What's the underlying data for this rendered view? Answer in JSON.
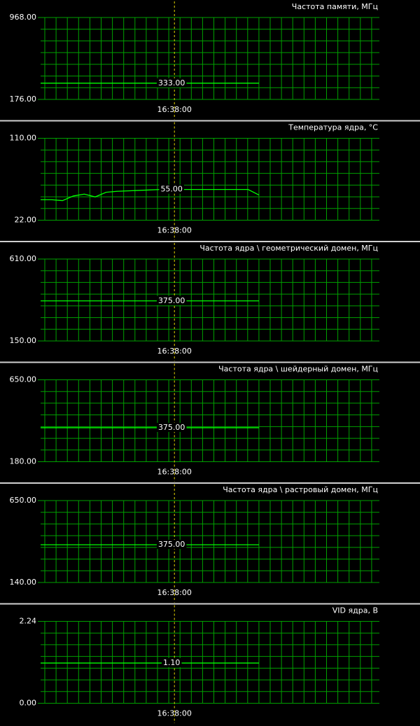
{
  "chart_data": [
    {
      "type": "line",
      "title": "Частота памяти, МГц",
      "color": "#00ff00",
      "categories": [
        null,
        null,
        null,
        null,
        null,
        null,
        null,
        null,
        null,
        null,
        null,
        null,
        "16:38:00",
        null,
        null,
        null,
        null,
        null,
        null,
        null,
        null
      ],
      "values": [
        333,
        333,
        333,
        333,
        333,
        333,
        333,
        333,
        333,
        333,
        333,
        333,
        333,
        333,
        333,
        333,
        333,
        333,
        333,
        333,
        333
      ],
      "value_labels": [
        null,
        null,
        null,
        null,
        null,
        null,
        null,
        null,
        null,
        null,
        null,
        null,
        "333.00",
        null,
        null,
        null,
        null,
        null,
        null,
        null,
        null
      ],
      "ylim": [
        176,
        968
      ],
      "yticks": [
        {
          "value": 176,
          "label": "176.00"
        },
        {
          "value": 968,
          "label": "968.00"
        }
      ]
    },
    {
      "type": "line",
      "title": "Температура ядра, °C",
      "color": "#00ff00",
      "categories": [
        null,
        null,
        null,
        null,
        null,
        null,
        null,
        null,
        null,
        null,
        null,
        null,
        "16:38:00",
        null,
        null,
        null,
        null,
        null,
        null,
        null,
        null
      ],
      "values": [
        44,
        44,
        43,
        48,
        50,
        47,
        52,
        53,
        53.5,
        54,
        54.5,
        55,
        55,
        55,
        55,
        55,
        55,
        55,
        55,
        55,
        49
      ],
      "value_labels": [
        null,
        null,
        null,
        null,
        null,
        null,
        null,
        null,
        null,
        null,
        null,
        null,
        "55.00",
        null,
        null,
        null,
        null,
        null,
        null,
        null,
        null
      ],
      "ylim": [
        22,
        110
      ],
      "yticks": [
        {
          "value": 22,
          "label": "22.00"
        },
        {
          "value": 110,
          "label": "110.00"
        }
      ]
    },
    {
      "type": "line",
      "title": "Частота ядра \\ геометрический домен, МГц",
      "color": "#00ff00",
      "categories": [
        null,
        null,
        null,
        null,
        null,
        null,
        null,
        null,
        null,
        null,
        null,
        null,
        "16:38:00",
        null,
        null,
        null,
        null,
        null,
        null,
        null,
        null
      ],
      "values": [
        375,
        375,
        375,
        375,
        375,
        375,
        375,
        375,
        375,
        375,
        375,
        375,
        375,
        375,
        375,
        375,
        375,
        375,
        375,
        375,
        375
      ],
      "value_labels": [
        null,
        null,
        null,
        null,
        null,
        null,
        null,
        null,
        null,
        null,
        null,
        null,
        "375.00",
        null,
        null,
        null,
        null,
        null,
        null,
        null,
        null
      ],
      "ylim": [
        150,
        610
      ],
      "yticks": [
        {
          "value": 150,
          "label": "150.00"
        },
        {
          "value": 610,
          "label": "610.00"
        }
      ]
    },
    {
      "type": "line",
      "title": "Частота ядра \\ шейдерный домен, МГц",
      "color": "#00ff00",
      "categories": [
        null,
        null,
        null,
        null,
        null,
        null,
        null,
        null,
        null,
        null,
        null,
        null,
        "16:38:00",
        null,
        null,
        null,
        null,
        null,
        null,
        null,
        null
      ],
      "values": [
        375,
        375,
        375,
        375,
        375,
        375,
        375,
        375,
        375,
        375,
        375,
        375,
        375,
        375,
        375,
        375,
        375,
        375,
        375,
        375,
        375
      ],
      "value_labels": [
        null,
        null,
        null,
        null,
        null,
        null,
        null,
        null,
        null,
        null,
        null,
        null,
        "375.00",
        null,
        null,
        null,
        null,
        null,
        null,
        null,
        null
      ],
      "ylim": [
        180,
        650
      ],
      "yticks": [
        {
          "value": 180,
          "label": "180.00"
        },
        {
          "value": 650,
          "label": "650.00"
        }
      ]
    },
    {
      "type": "line",
      "title": "Частота ядра \\ растровый домен, МГц",
      "color": "#00ff00",
      "categories": [
        null,
        null,
        null,
        null,
        null,
        null,
        null,
        null,
        null,
        null,
        null,
        null,
        "16:38:00",
        null,
        null,
        null,
        null,
        null,
        null,
        null,
        null
      ],
      "values": [
        375,
        375,
        375,
        375,
        375,
        375,
        375,
        375,
        375,
        375,
        375,
        375,
        375,
        375,
        375,
        375,
        375,
        375,
        375,
        375,
        375
      ],
      "value_labels": [
        null,
        null,
        null,
        null,
        null,
        null,
        null,
        null,
        null,
        null,
        null,
        null,
        "375.00",
        null,
        null,
        null,
        null,
        null,
        null,
        null,
        null
      ],
      "ylim": [
        140,
        650
      ],
      "yticks": [
        {
          "value": 140,
          "label": "140.00"
        },
        {
          "value": 650,
          "label": "650.00"
        }
      ]
    },
    {
      "type": "line",
      "title": "VID ядра, В",
      "color": "#00ff00",
      "categories": [
        null,
        null,
        null,
        null,
        null,
        null,
        null,
        null,
        null,
        null,
        null,
        null,
        "16:38:00",
        null,
        null,
        null,
        null,
        null,
        null,
        null,
        null
      ],
      "values": [
        1.1,
        1.1,
        1.1,
        1.1,
        1.1,
        1.1,
        1.1,
        1.1,
        1.1,
        1.1,
        1.1,
        1.1,
        1.1,
        1.1,
        1.1,
        1.1,
        1.1,
        1.1,
        1.1,
        1.1,
        1.1
      ],
      "value_labels": [
        null,
        null,
        null,
        null,
        null,
        null,
        null,
        null,
        null,
        null,
        null,
        null,
        "1.10",
        null,
        null,
        null,
        null,
        null,
        null,
        null,
        null
      ],
      "ylim": [
        0,
        2.24
      ],
      "yticks": [
        {
          "value": 0,
          "label": "0.00"
        },
        {
          "value": 2.24,
          "label": "2.24"
        }
      ]
    }
  ]
}
